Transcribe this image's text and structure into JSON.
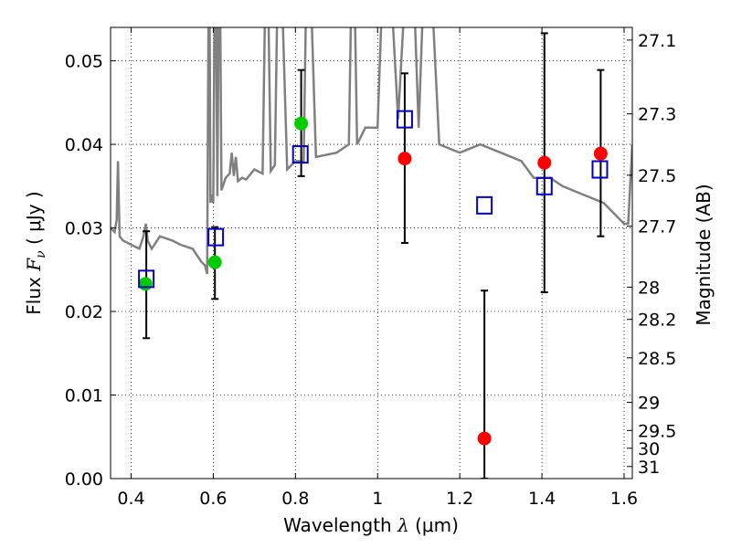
{
  "chart_data": {
    "type": "scatter",
    "xlabel": {
      "prefix": "Wavelength  ",
      "symbol": "λ",
      "unit": " (μm)"
    },
    "ylabel": {
      "prefix": "Flux  ",
      "symbol": "F",
      "subscript": "ν",
      "unit": "  ( μJy )"
    },
    "y2label": "Magnitude (AB)",
    "xlim": [
      0.35,
      1.62
    ],
    "ylim": [
      0.0,
      0.054
    ],
    "grid": true,
    "x_ticks": [
      {
        "value": 0.4,
        "label": "0.4"
      },
      {
        "value": 0.6,
        "label": "0.6"
      },
      {
        "value": 0.8,
        "label": "0.8"
      },
      {
        "value": 1.0,
        "label": "1"
      },
      {
        "value": 1.2,
        "label": "1.2"
      },
      {
        "value": 1.4,
        "label": "1.4"
      },
      {
        "value": 1.6,
        "label": "1.6"
      }
    ],
    "y_ticks": [
      {
        "value": 0.0,
        "label": "0.00"
      },
      {
        "value": 0.01,
        "label": "0.01"
      },
      {
        "value": 0.02,
        "label": "0.02"
      },
      {
        "value": 0.03,
        "label": "0.03"
      },
      {
        "value": 0.04,
        "label": "0.04"
      },
      {
        "value": 0.05,
        "label": "0.05"
      }
    ],
    "y2_ticks": [
      {
        "label": "27.1",
        "mag": 27.1
      },
      {
        "label": "27.3",
        "mag": 27.3
      },
      {
        "label": "27.5",
        "mag": 27.5
      },
      {
        "label": "27.7",
        "mag": 27.7
      },
      {
        "label": "28",
        "mag": 28.0
      },
      {
        "label": "28.2",
        "mag": 28.2
      },
      {
        "label": "28.5",
        "mag": 28.5
      },
      {
        "label": "29",
        "mag": 29.0
      },
      {
        "label": "29.5",
        "mag": 29.5
      },
      {
        "label": "30",
        "mag": 30.0
      },
      {
        "label": "31",
        "mag": 31.0
      }
    ],
    "colors": {
      "model": "#808080",
      "detection": "#00cc00",
      "upper": "#ff0000",
      "synthetic": "#0000cc",
      "errorbar": "#000000"
    },
    "model_spectrum": {
      "x": [
        0.35,
        0.36,
        0.365,
        0.368,
        0.372,
        0.38,
        0.4,
        0.42,
        0.43,
        0.436,
        0.44,
        0.45,
        0.47,
        0.5,
        0.52,
        0.55,
        0.57,
        0.58,
        0.585,
        0.59,
        0.593,
        0.595,
        0.6,
        0.605,
        0.61,
        0.615,
        0.62,
        0.63,
        0.64,
        0.645,
        0.65,
        0.655,
        0.66,
        0.67,
        0.68,
        0.7,
        0.72,
        0.73,
        0.74,
        0.75,
        0.76,
        0.78,
        0.8,
        0.82,
        0.83,
        0.85,
        0.9,
        0.93,
        0.94,
        0.95,
        0.97,
        1.0,
        1.02,
        1.05,
        1.08,
        1.1,
        1.12,
        1.15,
        1.2,
        1.25,
        1.3,
        1.35,
        1.38,
        1.42,
        1.45,
        1.5,
        1.55,
        1.58,
        1.6,
        1.61,
        1.62
      ],
      "y": [
        0.03,
        0.0295,
        0.031,
        0.038,
        0.029,
        0.0285,
        0.028,
        0.0275,
        0.029,
        0.0305,
        0.0285,
        0.0275,
        0.029,
        0.0285,
        0.028,
        0.0275,
        0.026,
        0.0255,
        0.0245,
        0.07,
        0.033,
        0.034,
        0.033,
        0.07,
        0.0338,
        0.07,
        0.0345,
        0.036,
        0.0365,
        0.039,
        0.0362,
        0.0385,
        0.0356,
        0.036,
        0.0358,
        0.037,
        0.0365,
        0.07,
        0.0368,
        0.0375,
        0.07,
        0.037,
        0.038,
        0.038,
        0.07,
        0.0385,
        0.039,
        0.04,
        0.07,
        0.04,
        0.042,
        0.042,
        0.07,
        0.043,
        0.07,
        0.042,
        0.07,
        0.04,
        0.039,
        0.04,
        0.039,
        0.038,
        0.036,
        0.036,
        0.035,
        0.034,
        0.033,
        0.0315,
        0.0305,
        0.0305,
        0.04
      ]
    },
    "series": [
      {
        "kind": "detection",
        "x": [
          0.435,
          0.604,
          0.814
        ],
        "y": [
          0.0233,
          0.0259,
          0.0425
        ]
      },
      {
        "kind": "upper",
        "x": [
          1.066,
          1.26,
          1.406,
          1.543
        ],
        "y": [
          0.0383,
          0.0048,
          0.0378,
          0.0389
        ]
      },
      {
        "kind": "synthetic",
        "x": [
          0.437,
          0.606,
          0.812,
          1.066,
          1.26,
          1.406,
          1.541
        ],
        "y": [
          0.0239,
          0.0289,
          0.0388,
          0.043,
          0.0327,
          0.035,
          0.037
        ]
      }
    ],
    "error_bars": [
      {
        "x": 0.437,
        "low": 0.0168,
        "high": 0.0296
      },
      {
        "x": 0.604,
        "low": 0.0215,
        "high": 0.0301
      },
      {
        "x": 0.814,
        "low": 0.0362,
        "high": 0.0489
      },
      {
        "x": 1.066,
        "low": 0.0282,
        "high": 0.0485
      },
      {
        "x": 1.26,
        "low": 0.0,
        "high": 0.0225
      },
      {
        "x": 1.406,
        "low": 0.0223,
        "high": 0.0533
      },
      {
        "x": 1.543,
        "low": 0.029,
        "high": 0.0489
      }
    ]
  }
}
